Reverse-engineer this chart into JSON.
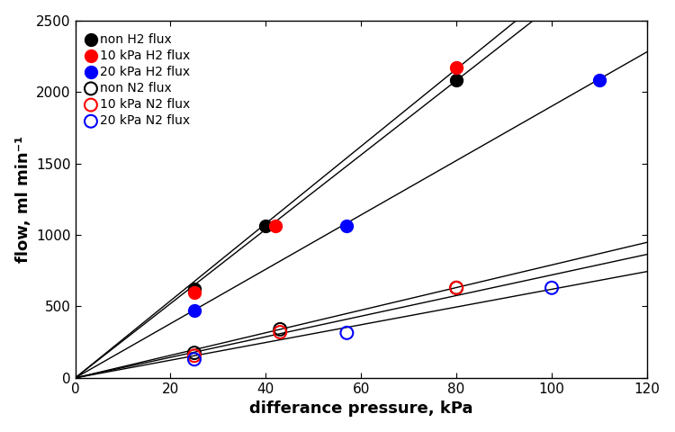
{
  "title": "",
  "xlabel": "differance pressure, kPa",
  "ylabel": "flow, ml min⁻¹",
  "xlim": [
    0,
    120
  ],
  "ylim": [
    0,
    2500
  ],
  "xticks": [
    0,
    20,
    40,
    60,
    80,
    100,
    120
  ],
  "yticks": [
    0,
    500,
    1000,
    1500,
    2000,
    2500
  ],
  "series": [
    {
      "label": "non H2 flux",
      "color": "black",
      "filled": true,
      "x": [
        25,
        40,
        80
      ],
      "y": [
        620,
        1060,
        2080
      ],
      "slope": 26.0
    },
    {
      "label": "10 kPa H2 flux",
      "color": "red",
      "filled": true,
      "x": [
        25,
        42,
        80
      ],
      "y": [
        600,
        1060,
        2170
      ],
      "slope": 27.0
    },
    {
      "label": "20 kPa H2 flux",
      "color": "blue",
      "filled": true,
      "x": [
        25,
        57,
        110
      ],
      "y": [
        470,
        1060,
        2080
      ],
      "slope": 19.0
    },
    {
      "label": "non N2 flux",
      "color": "black",
      "filled": false,
      "x": [
        25,
        43,
        80
      ],
      "y": [
        175,
        340,
        630
      ],
      "slope": 7.9
    },
    {
      "label": "10 kPa N2 flux",
      "color": "red",
      "filled": false,
      "x": [
        25,
        43,
        80
      ],
      "y": [
        155,
        320,
        630
      ],
      "slope": 7.2
    },
    {
      "label": "20 kPa N2 flux",
      "color": "blue",
      "filled": false,
      "x": [
        25,
        57,
        100
      ],
      "y": [
        130,
        315,
        630
      ],
      "slope": 6.2
    }
  ],
  "marker_size": 100,
  "line_color": "black",
  "line_width": 1.0,
  "background_color": "#ffffff",
  "font_size_label": 13,
  "font_size_tick": 11,
  "font_size_legend": 10
}
